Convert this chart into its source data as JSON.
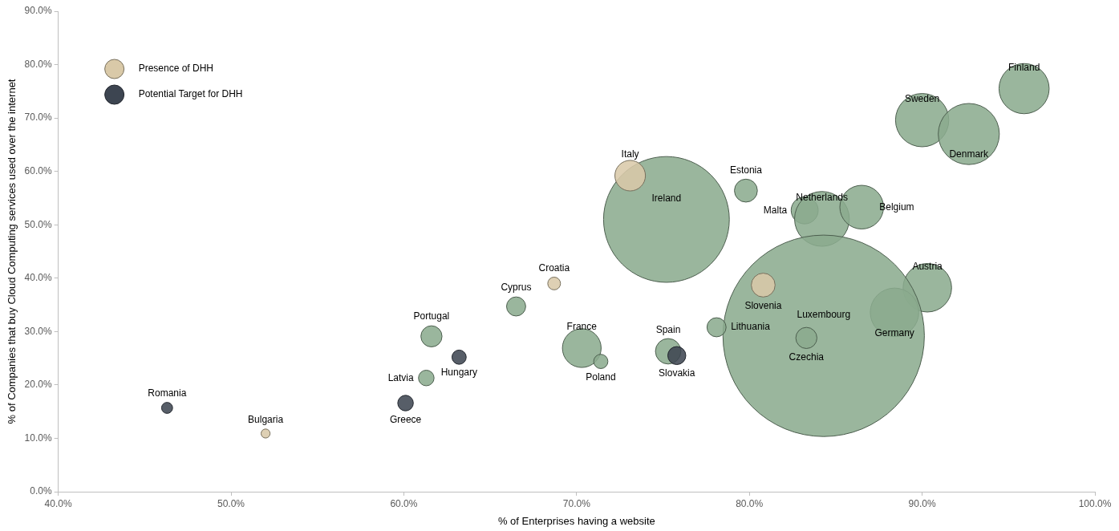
{
  "chart_data": {
    "type": "bubble",
    "xlabel": "% of Enterprises having a website",
    "ylabel": "% of Companies that buy Cloud Computing services used over the internet",
    "xlim": [
      40,
      100
    ],
    "xticks": [
      {
        "value": 40,
        "label": "40.0%"
      },
      {
        "value": 50,
        "label": "50.0%"
      },
      {
        "value": 60,
        "label": "60.0%"
      },
      {
        "value": 70,
        "label": "70.0%"
      },
      {
        "value": 80,
        "label": "80.0%"
      },
      {
        "value": 90,
        "label": "90.0%"
      },
      {
        "value": 100,
        "label": "100.0%"
      }
    ],
    "ylim": [
      0,
      90
    ],
    "yticks": [
      {
        "value": 0,
        "label": "0.0%"
      },
      {
        "value": 10,
        "label": "10.0%"
      },
      {
        "value": 20,
        "label": "20.0%"
      },
      {
        "value": 30,
        "label": "30.0%"
      },
      {
        "value": 40,
        "label": "40.0%"
      },
      {
        "value": 50,
        "label": "50.0%"
      },
      {
        "value": 60,
        "label": "60.0%"
      },
      {
        "value": 70,
        "label": "70.0%"
      },
      {
        "value": 80,
        "label": "80.0%"
      },
      {
        "value": 90,
        "label": "90.0%"
      }
    ],
    "grid": false,
    "legend": "top left",
    "series": [
      {
        "color": "#8aab8e",
        "x": [
          95.9,
          90.0,
          92.7,
          75.2,
          79.8,
          83.2,
          84.2,
          86.5,
          90.3,
          88.4,
          84.3,
          83.3,
          78.1,
          75.3,
          70.3,
          71.4,
          66.5,
          61.6,
          61.3
        ],
        "values": [
          75.5,
          69.6,
          67.0,
          51.0,
          56.4,
          52.7,
          51.1,
          53.3,
          38.2,
          33.6,
          29.2,
          28.8,
          30.8,
          26.3,
          26.9,
          24.4,
          34.7,
          29.1,
          21.3
        ],
        "sizes": [
          0.062,
          0.07,
          0.092,
          0.39,
          0.013,
          0.018,
          0.074,
          0.047,
          0.058,
          0.058,
          1,
          0.011,
          0.009,
          0.016,
          0.037,
          0.005,
          0.009,
          0.011,
          0.006
        ]
      },
      {
        "name": "Presence of DHH",
        "color": "#d9c9a8",
        "x": [
          73.1,
          80.8,
          68.7,
          52.0
        ],
        "values": [
          59.2,
          38.7,
          39.0,
          10.9
        ],
        "sizes": [
          0.023,
          0.014,
          0.004,
          0.002
        ]
      },
      {
        "name": "Potential Target for DHH",
        "color": "#3d4551",
        "x": [
          75.8,
          63.2,
          60.1,
          46.3
        ],
        "values": [
          25.5,
          25.2,
          16.6,
          15.7
        ],
        "sizes": [
          0.008,
          0.005,
          0.006,
          0.003
        ]
      }
    ],
    "annotations": [
      {
        "text": "Finland",
        "x": 95.9,
        "y": 75.5
      },
      {
        "text": "Sweden",
        "x": 90.0,
        "y": 69.6
      },
      {
        "text": "Denmark",
        "x": 92.7,
        "y": 67.0
      },
      {
        "text": "Italy",
        "x": 73.1,
        "y": 59.2
      },
      {
        "text": "Ireland",
        "x": 75.2,
        "y": 51.0
      },
      {
        "text": "Estonia",
        "x": 79.8,
        "y": 56.4
      },
      {
        "text": "Malta",
        "x": 83.2,
        "y": 52.7
      },
      {
        "text": "Netherlands",
        "x": 84.2,
        "y": 51.1
      },
      {
        "text": "Belgium",
        "x": 86.5,
        "y": 53.3
      },
      {
        "text": "Austria",
        "x": 90.3,
        "y": 38.2
      },
      {
        "text": "Germany",
        "x": 88.4,
        "y": 33.6
      },
      {
        "text": "Slovenia",
        "x": 80.8,
        "y": 38.7
      },
      {
        "text": "Luxembourg",
        "x": 84.3,
        "y": 29.2
      },
      {
        "text": "Czechia",
        "x": 83.3,
        "y": 28.8
      },
      {
        "text": "Lithuania",
        "x": 78.1,
        "y": 30.8
      },
      {
        "text": "Spain",
        "x": 75.3,
        "y": 26.3
      },
      {
        "text": "Slovakia",
        "x": 75.8,
        "y": 25.5
      },
      {
        "text": "France",
        "x": 70.3,
        "y": 26.9
      },
      {
        "text": "Poland",
        "x": 71.4,
        "y": 24.4
      },
      {
        "text": "Croatia",
        "x": 68.7,
        "y": 39.0
      },
      {
        "text": "Cyprus",
        "x": 66.5,
        "y": 34.7
      },
      {
        "text": "Portugal",
        "x": 61.6,
        "y": 29.1
      },
      {
        "text": "Hungary",
        "x": 63.2,
        "y": 25.2
      },
      {
        "text": "Latvia",
        "x": 61.3,
        "y": 21.3
      },
      {
        "text": "Greece",
        "x": 60.1,
        "y": 16.6
      },
      {
        "text": "Romania",
        "x": 46.3,
        "y": 15.7
      },
      {
        "text": "Bulgaria",
        "x": 52.0,
        "y": 10.9
      }
    ]
  }
}
